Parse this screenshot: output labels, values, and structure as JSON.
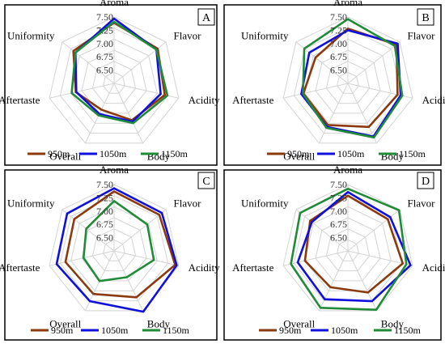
{
  "chart_data": [
    {
      "type": "radar",
      "panel_label": "A",
      "categories": [
        "Aroma",
        "Flavor",
        "Acidity",
        "Body",
        "Overall",
        "Aftertaste",
        "Uniformity"
      ],
      "rticks": [
        "7.50",
        "7.25",
        "7.00",
        "6.75",
        "6.50"
      ],
      "rlim": [
        6.25,
        7.5
      ],
      "series": [
        {
          "name": "950m",
          "color": "#8B3A0E",
          "values": [
            7.39,
            7.3,
            7.23,
            7.02,
            6.8,
            6.99,
            7.23
          ]
        },
        {
          "name": "1050m",
          "color": "#1010dd",
          "values": [
            7.47,
            7.27,
            7.15,
            7.05,
            6.89,
            6.98,
            7.18
          ]
        },
        {
          "name": "1150m",
          "color": "#228b3a",
          "values": [
            7.41,
            7.27,
            7.28,
            7.08,
            6.92,
            7.07,
            7.18
          ]
        }
      ]
    },
    {
      "type": "radar",
      "panel_label": "B",
      "categories": [
        "Aroma",
        "Flavor",
        "Acidity",
        "Body",
        "Overall",
        "Aftertaste",
        "Uniformity"
      ],
      "rticks": [
        "7.50",
        "7.25",
        "7.00",
        "6.75",
        "6.50"
      ],
      "rlim": [
        6.25,
        7.5
      ],
      "series": [
        {
          "name": "950m",
          "color": "#8B3A0E",
          "values": [
            7.28,
            7.42,
            7.21,
            7.16,
            7.12,
            7.11,
            7.03
          ]
        },
        {
          "name": "1050m",
          "color": "#1010dd",
          "values": [
            7.25,
            7.45,
            7.27,
            7.36,
            7.16,
            7.15,
            7.18
          ]
        },
        {
          "name": "1150m",
          "color": "#228b3a",
          "values": [
            7.46,
            7.38,
            7.3,
            7.38,
            7.18,
            7.12,
            7.3
          ]
        }
      ]
    },
    {
      "type": "radar",
      "panel_label": "C",
      "categories": [
        "Aroma",
        "Flavor",
        "Acidity",
        "Body",
        "Overall",
        "Aftertaste",
        "Uniformity"
      ],
      "rticks": [
        "7.50",
        "7.25",
        "7.00",
        "6.75",
        "6.50"
      ],
      "rlim": [
        6.25,
        7.5
      ],
      "series": [
        {
          "name": "950m",
          "color": "#8B3A0E",
          "values": [
            7.37,
            7.34,
            7.43,
            7.22,
            7.15,
            7.19,
            7.21
          ]
        },
        {
          "name": "1050m",
          "color": "#1010dd",
          "values": [
            7.43,
            7.4,
            7.46,
            7.52,
            7.3,
            7.36,
            7.38
          ]
        },
        {
          "name": "1150m",
          "color": "#228b3a",
          "values": [
            7.19,
            7.05,
            7.02,
            6.8,
            6.88,
            6.84,
            6.92
          ]
        }
      ]
    },
    {
      "type": "radar",
      "panel_label": "D",
      "categories": [
        "Aroma",
        "Flavor",
        "Acidity",
        "Body",
        "Overall",
        "Aftertaste",
        "Uniformity"
      ],
      "rticks": [
        "7.50",
        "7.25",
        "7.00",
        "6.75",
        "6.50"
      ],
      "rlim": [
        6.25,
        7.5
      ],
      "series": [
        {
          "name": "950m",
          "color": "#8B3A0E",
          "values": [
            7.29,
            7.21,
            7.31,
            7.12,
            7.01,
            7.08,
            7.16
          ]
        },
        {
          "name": "1050m",
          "color": "#1010dd",
          "values": [
            7.36,
            7.27,
            7.46,
            7.3,
            7.26,
            7.22,
            7.12
          ]
        },
        {
          "name": "1150m",
          "color": "#228b3a",
          "values": [
            7.42,
            7.48,
            7.38,
            7.48,
            7.44,
            7.35,
            7.4
          ]
        }
      ]
    }
  ]
}
